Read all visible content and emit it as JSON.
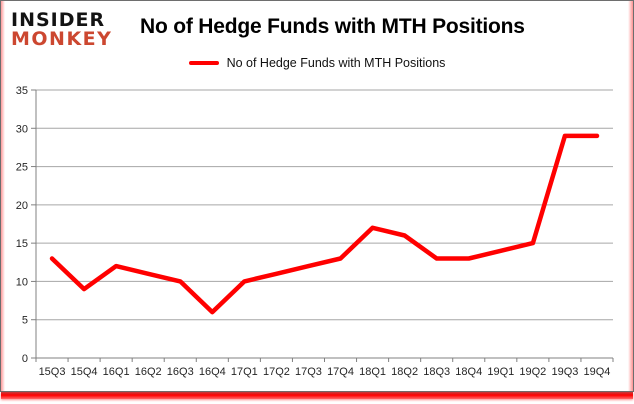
{
  "brand": {
    "name_line1": "INSIDER",
    "name_line2": "MONKEY"
  },
  "title": "No of Hedge Funds with MTH Positions",
  "legend": {
    "label": "No of Hedge Funds with MTH Positions",
    "swatch_color": "#ff0000"
  },
  "chart_data": {
    "type": "line",
    "title": "No of Hedge Funds with MTH Positions",
    "categories": [
      "15Q3",
      "15Q4",
      "16Q1",
      "16Q2",
      "16Q3",
      "16Q4",
      "17Q1",
      "17Q2",
      "17Q3",
      "17Q4",
      "18Q1",
      "18Q2",
      "18Q3",
      "18Q4",
      "19Q1",
      "19Q2",
      "19Q3",
      "19Q4"
    ],
    "series": [
      {
        "name": "No of Hedge Funds with MTH Positions",
        "color": "#ff0000",
        "values": [
          13,
          9,
          12,
          11,
          10,
          6,
          10,
          11,
          12,
          13,
          17,
          16,
          13,
          13,
          14,
          15,
          29,
          29
        ]
      }
    ],
    "xlabel": "",
    "ylabel": "",
    "ylim": [
      0,
      35
    ],
    "ytick_step": 5,
    "y_tick_labels": [
      "0",
      "5",
      "10",
      "15",
      "20",
      "25",
      "30",
      "35"
    ],
    "grid": true,
    "legend_position": "top"
  },
  "colors": {
    "line": "#ff0000",
    "grid": "#a6a6a6",
    "axis": "#808080",
    "tick_text": "#262626",
    "logo_red": "#cc4730",
    "frame_border": "#6e6e6e",
    "bottom_bar": "#fa0a0a"
  }
}
